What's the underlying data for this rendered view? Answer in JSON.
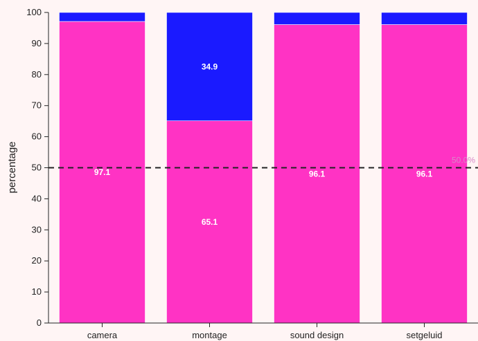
{
  "chart_data": {
    "type": "bar",
    "stacked": true,
    "categories": [
      "camera",
      "montage",
      "sound design",
      "setgeluid"
    ],
    "series": [
      {
        "values": [
          97.1,
          65.1,
          96.1,
          96.1
        ],
        "labels": [
          "97.1",
          "65.1",
          "96.1",
          "96.1"
        ],
        "color": "#ff33c4"
      },
      {
        "values": [
          2.9,
          34.9,
          3.9,
          3.9
        ],
        "labels": [
          "",
          "34.9",
          "",
          ""
        ],
        "color": "#1a1aff"
      }
    ],
    "ylabel": "percentage",
    "ylim": [
      0,
      100
    ],
    "yticks": [
      0,
      10,
      20,
      30,
      40,
      50,
      60,
      70,
      80,
      90,
      100
    ],
    "grid": false,
    "reference_line": {
      "value": 50,
      "label": "50.0%",
      "style": "dashed",
      "color": "#222222"
    }
  },
  "colors": {
    "background": "#fff5f5",
    "axis": "#222222",
    "reference_label": "#d889c8"
  }
}
